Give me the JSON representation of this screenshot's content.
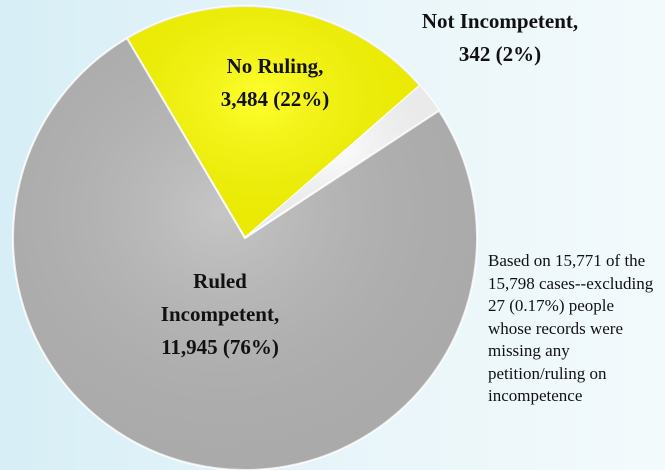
{
  "chart_data": {
    "type": "pie",
    "categories": [
      "No Ruling,",
      "Not Incompetent,",
      "Ruled Incompetent,"
    ],
    "values": [
      3484,
      342,
      11945
    ],
    "value_labels": [
      "3,484 (22%)",
      "342 (2%)",
      "11,945 (76%)"
    ],
    "colors": [
      "#ffff00",
      "#ffffff",
      "#b9b9b9"
    ],
    "annotation": "Based on 15,771 of the 15,798 cases--excluding 27 (0.17%) people whose records were missing any petition/ruling on incompetence"
  }
}
